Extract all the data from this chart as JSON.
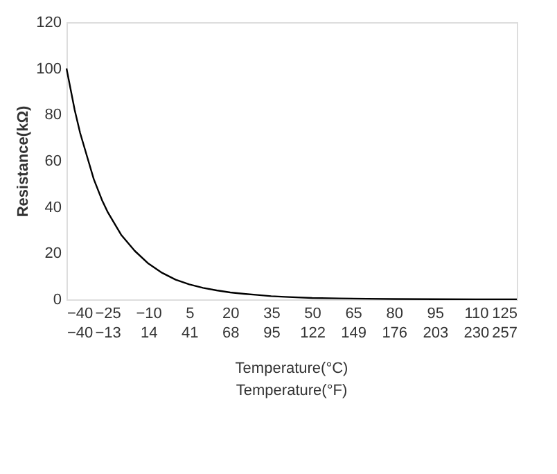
{
  "chart_data": {
    "type": "line",
    "xlabel": "Temperature(°C)",
    "x2label": "Temperature(°F)",
    "ylabel": "Resistance(kΩ)",
    "x": [
      -40,
      -37,
      -35,
      -32,
      -30,
      -27,
      -25,
      -22,
      -20,
      -15,
      -10,
      -5,
      0,
      5,
      10,
      15,
      20,
      25,
      30,
      35,
      40,
      50,
      60,
      70,
      80,
      95,
      110,
      125
    ],
    "series": [
      {
        "color": "#000000",
        "values": [
          100,
          82,
          72,
          60,
          52,
          43,
          38,
          32,
          28,
          21,
          15.5,
          11.5,
          8.5,
          6.5,
          5,
          3.9,
          3,
          2.4,
          1.9,
          1.4,
          1.1,
          0.6,
          0.4,
          0.25,
          0.15,
          0.08,
          0.05,
          0.03
        ]
      }
    ],
    "xlim": [
      -40,
      125
    ],
    "xticks": [
      -40,
      -25,
      -10,
      5,
      20,
      35,
      50,
      65,
      80,
      95,
      110,
      125
    ],
    "x2lim": [
      -40,
      257
    ],
    "x2ticks": [
      -40,
      -13,
      14,
      41,
      68,
      95,
      122,
      149,
      176,
      203,
      230,
      257
    ],
    "ylim": [
      0,
      120
    ],
    "yticks": [
      0,
      20,
      40,
      60,
      80,
      100,
      120
    ],
    "grid": false,
    "legend": false,
    "marker": "none",
    "line_style": "solid"
  }
}
